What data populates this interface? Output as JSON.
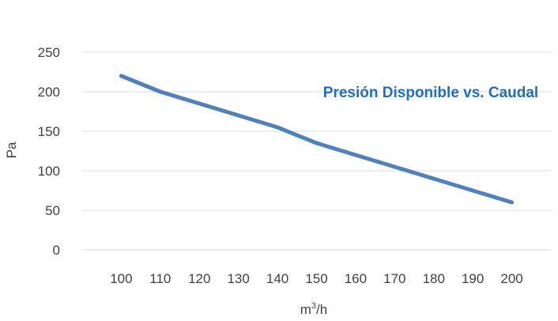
{
  "chart_data": {
    "type": "line",
    "title": "Presión Disponible vs. Caudal",
    "xlabel_base": "m",
    "xlabel_sup": "3",
    "xlabel_tail": "/h",
    "ylabel": "Pa",
    "x": [
      100,
      110,
      120,
      130,
      140,
      150,
      160,
      170,
      180,
      190,
      200
    ],
    "xticks": [
      "100",
      "110",
      "120",
      "130",
      "140",
      "150",
      "160",
      "170",
      "180",
      "190",
      "200"
    ],
    "yticks": [
      "0",
      "50",
      "100",
      "150",
      "200",
      "250"
    ],
    "ylim": [
      0,
      250
    ],
    "grid": true,
    "series": [
      {
        "values": [
          220,
          200,
          185,
          170,
          155,
          135,
          120,
          105,
          90,
          75,
          60
        ]
      }
    ],
    "colors": {
      "line": "#4f81bd",
      "title": "#1f6fc0",
      "grid": "#d9d9d9",
      "text": "#404040"
    }
  }
}
